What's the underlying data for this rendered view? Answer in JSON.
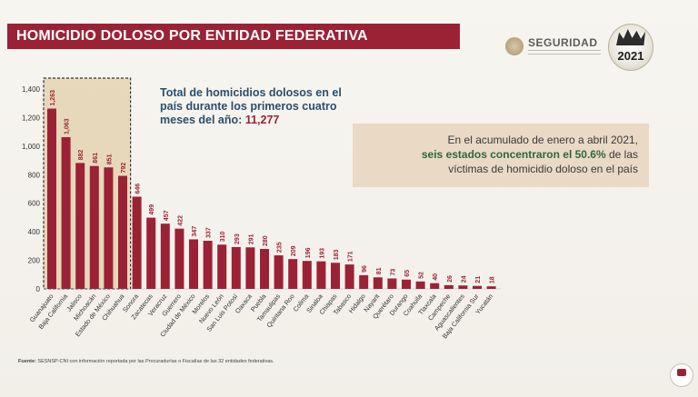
{
  "title": "HOMICIDIO DOLOSO POR ENTIDAD FEDERATIVA",
  "logos": {
    "seguridad": "SEGURIDAD",
    "year_badge": "2021"
  },
  "heading": {
    "text": "Total de homicidios dolosos en el país durante los primeros cuatro meses del año:",
    "total": "11,277"
  },
  "callout": {
    "line1": "En el acumulado de enero a abril 2021,",
    "highlight": "seis estados concentraron el 50.6%",
    "line2_rest": " de las",
    "line3": "víctimas de homicidio doloso en el país"
  },
  "footnote": {
    "label": "Fuente:",
    "text": "SESNSP-CNI con información reportada por las Procuradurías o Fiscalías de las 32 entidades federativas."
  },
  "colors": {
    "bar": "#9b2235",
    "title_bg": "#9b2235",
    "highlight_box": "#d9b98c",
    "heading": "#2a4f6e",
    "callout_bg": "#ead9c4"
  },
  "chart_data": {
    "type": "bar",
    "categories": [
      "Guanajuato",
      "Baja California",
      "Jalisco",
      "Michoacán",
      "Estado de México",
      "Chihuahua",
      "Sonora",
      "Zacatecas",
      "Veracruz",
      "Guerrero",
      "Ciudad de México",
      "Morelos",
      "Nuevo León",
      "San Luis Potosí",
      "Oaxaca",
      "Puebla",
      "Tamaulipas",
      "Quintana Roo",
      "Colima",
      "Sinaloa",
      "Chiapas",
      "Tabasco",
      "Hidalgo",
      "Nayarit",
      "Querétaro",
      "Durango",
      "Coahuila",
      "Tlaxcala",
      "Campeche",
      "Aguascalientes",
      "Baja California Sur",
      "Yucatán"
    ],
    "values": [
      1263,
      1063,
      882,
      861,
      851,
      792,
      646,
      499,
      457,
      422,
      347,
      337,
      310,
      293,
      291,
      280,
      235,
      209,
      196,
      193,
      183,
      171,
      96,
      81,
      73,
      65,
      52,
      40,
      26,
      24,
      21,
      18
    ],
    "data_labels": [
      "1,263",
      "1,063",
      "882",
      "861",
      "851",
      "792",
      "646",
      "499",
      "457",
      "422",
      "347",
      "337",
      "310",
      "293",
      "291",
      "280",
      "235",
      "209",
      "196",
      "193",
      "183",
      "171",
      "96",
      "81",
      "73",
      "65",
      "52",
      "40",
      "26",
      "24",
      "21",
      "18"
    ],
    "yticks": [
      "0",
      "200",
      "400",
      "600",
      "800",
      "1,000",
      "1,200",
      "1,400"
    ],
    "ylim": [
      0,
      1400
    ],
    "highlighted_count": 6
  }
}
